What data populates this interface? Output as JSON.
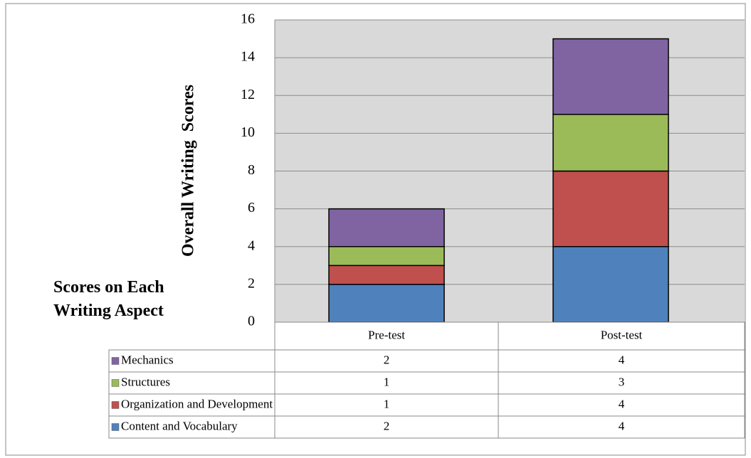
{
  "chart_data": {
    "type": "stacked-bar",
    "y_label": "Overall Writing  Scores",
    "table_title": "Scores on Each Writing Aspect",
    "categories": [
      "Pre-test",
      "Post-test"
    ],
    "series": [
      {
        "name": "Content and Vocabulary",
        "color": "#4f81bd",
        "values": [
          2,
          4
        ]
      },
      {
        "name": "Organization and Development",
        "color": "#c0504d",
        "values": [
          1,
          4
        ]
      },
      {
        "name": "Structures",
        "color": "#9bbb59",
        "values": [
          1,
          3
        ]
      },
      {
        "name": "Mechanics",
        "color": "#8064a2",
        "values": [
          2,
          4
        ]
      }
    ],
    "ylim": [
      0,
      16
    ],
    "yticks": [
      0,
      2,
      4,
      6,
      8,
      10,
      12,
      14,
      16
    ],
    "grid": true
  }
}
